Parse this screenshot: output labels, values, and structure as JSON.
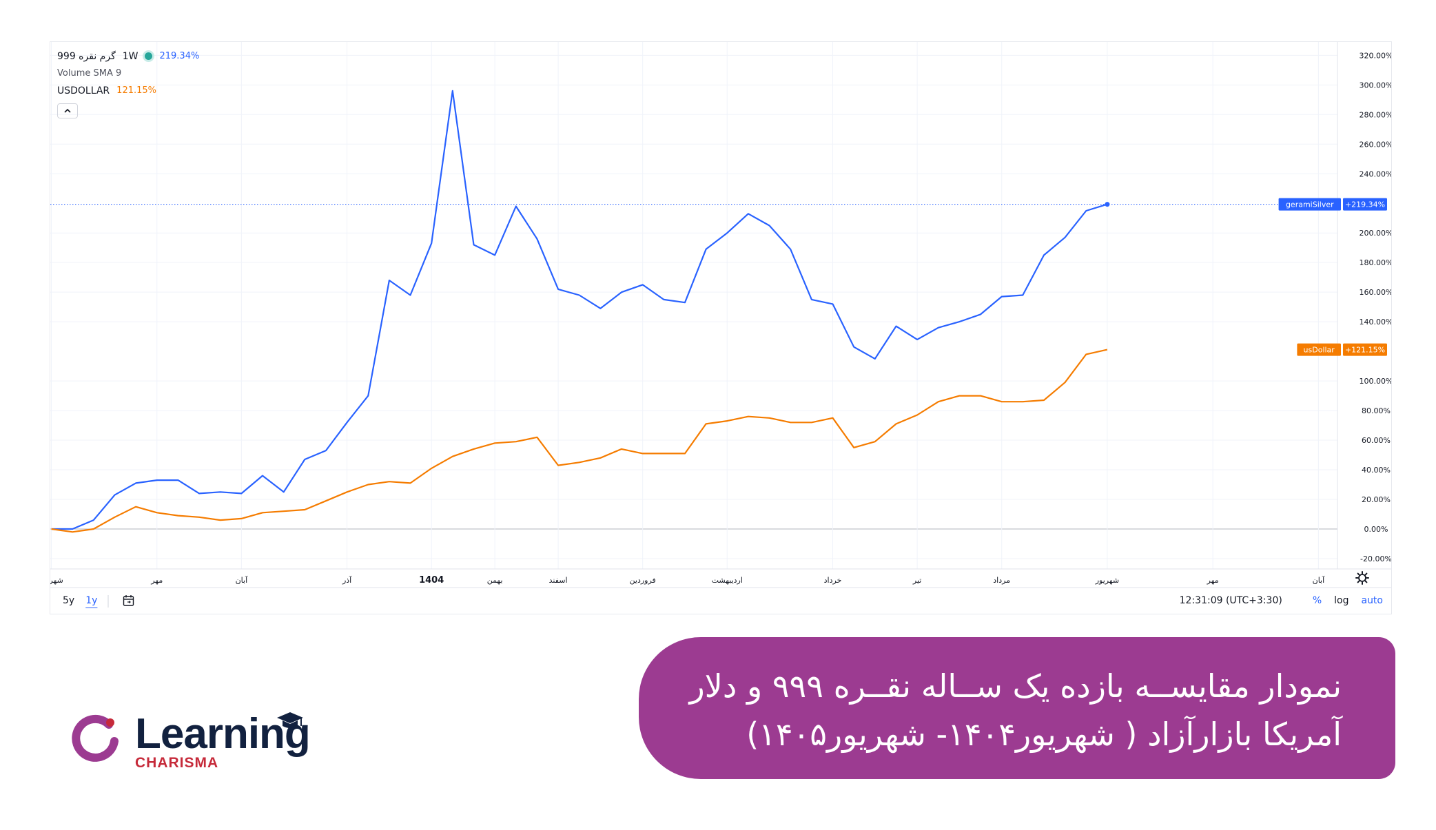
{
  "legend": {
    "symbol": "گرم نقره 999",
    "interval": "1W",
    "symbol_change": "219.34%",
    "volume": "Volume SMA 9",
    "compare_symbol": "USDOLLAR",
    "compare_change": "121.15%",
    "collapse_icon": "chevron-up-icon"
  },
  "colors": {
    "silver": "#2962ff",
    "usd": "#f57c00",
    "banner": "#9c3b91",
    "logo_ring": "#9c3b91",
    "logo_text": "#12213f",
    "logo_sub": "#c62a3a"
  },
  "chart_data": {
    "type": "line",
    "x_labels": [
      "شهریور",
      "مهر",
      "آبان",
      "آذر",
      "1404",
      "بهمن",
      "اسفند",
      "فروردین",
      "اردیبهشت",
      "خرداد",
      "تیر",
      "مرداد",
      "شهریور",
      "مهر",
      "آبان"
    ],
    "x_label_positions": [
      0,
      5,
      9,
      14,
      18,
      21,
      24,
      28,
      32,
      37,
      41,
      45,
      50,
      55,
      60
    ],
    "y_ticks": [
      "320.00%",
      "300.00%",
      "280.00%",
      "260.00%",
      "240.00%",
      "200.00%",
      "180.00%",
      "160.00%",
      "140.00%",
      "100.00%",
      "80.00%",
      "60.00%",
      "40.00%",
      "20.00%",
      "0.00%",
      "-20.00%"
    ],
    "y_tick_values": [
      320,
      300,
      280,
      260,
      240,
      200,
      180,
      160,
      140,
      100,
      80,
      60,
      40,
      20,
      0,
      -20
    ],
    "ylim": [
      -27,
      329
    ],
    "xlim": [
      -0.05,
      60.9
    ],
    "series": [
      {
        "name": "geramiSilver",
        "badge_value": "+219.34%",
        "color": "#2962ff",
        "values": [
          0,
          0,
          6,
          23,
          31,
          33,
          33,
          24,
          25,
          24,
          36,
          25,
          47,
          53,
          72,
          90,
          168,
          158,
          193,
          296,
          192,
          185,
          218,
          196,
          162,
          158,
          149,
          160,
          165,
          155,
          153,
          189,
          200,
          213,
          205,
          189,
          155,
          152,
          123,
          115,
          137,
          128,
          136,
          140,
          145,
          157,
          158,
          185,
          197,
          215,
          219.34
        ]
      },
      {
        "name": "usDollar",
        "badge_value": "+121.15%",
        "color": "#f57c00",
        "values": [
          0,
          -2,
          0,
          8,
          15,
          11,
          9,
          8,
          6,
          7,
          11,
          12,
          13,
          19,
          25,
          30,
          32,
          31,
          41,
          49,
          54,
          58,
          59,
          62,
          43,
          45,
          48,
          54,
          51,
          51,
          51,
          71,
          73,
          76,
          75,
          72,
          72,
          75,
          55,
          59,
          71,
          77,
          86,
          90,
          90,
          86,
          86,
          87,
          99,
          118,
          121.15
        ]
      }
    ]
  },
  "bottom_bar": {
    "range_5y": "5y",
    "range_1y": "1y",
    "calendar_icon": "calendar-range-icon",
    "time": "12:31:09 (UTC+3:30)",
    "percent": "%",
    "log": "log",
    "auto": "auto",
    "settings_icon": "gear-icon"
  },
  "banner": {
    "line1": "نمودار مقایســه بازده یک ســاله نقــره ۹۹۹ و دلار",
    "line2": "آمریکا بازارآزاد ( شهریور۱۴۰۴- شهریور۱۴۰۵)"
  },
  "logo": {
    "word": "Learning",
    "sub": "CHARISMA"
  }
}
